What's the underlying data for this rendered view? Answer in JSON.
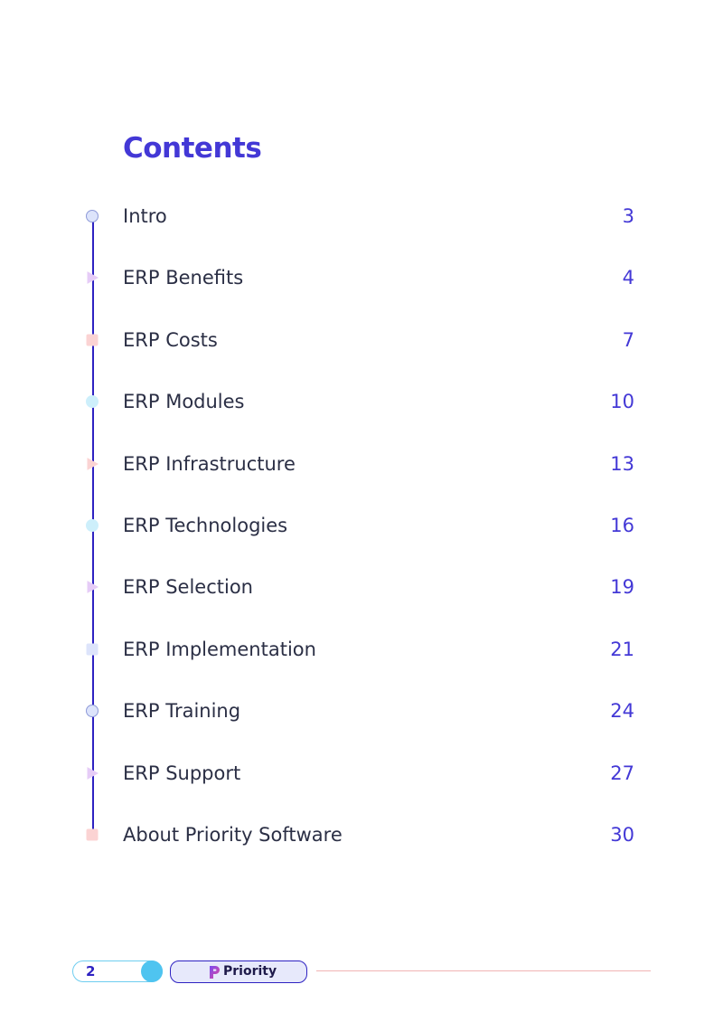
{
  "document": {
    "title": "Contents"
  },
  "toc": [
    {
      "title": "Intro",
      "page": "3",
      "marker": "circle-marker-icon",
      "color": "#dde4fb",
      "stroke": "#8e9ad8"
    },
    {
      "title": "ERP Benefits",
      "page": "4",
      "marker": "triangle-marker-icon",
      "color": "#e6ccf7",
      "stroke": "#e6ccf7"
    },
    {
      "title": "ERP Costs",
      "page": "7",
      "marker": "square-marker-icon",
      "color": "#fbd3d3",
      "stroke": "#fbd3d3"
    },
    {
      "title": "ERP Modules",
      "page": "10",
      "marker": "circle-marker-icon",
      "color": "#cdeffb",
      "stroke": "#cdeffb"
    },
    {
      "title": "ERP Infrastructure",
      "page": "13",
      "marker": "triangle-marker-icon",
      "color": "#fbd3d3",
      "stroke": "#fbd3d3"
    },
    {
      "title": "ERP Technologies",
      "page": "16",
      "marker": "circle-marker-icon",
      "color": "#cdeffb",
      "stroke": "#cdeffb"
    },
    {
      "title": "ERP Selection",
      "page": "19",
      "marker": "triangle-marker-icon",
      "color": "#e6ccf7",
      "stroke": "#e6ccf7"
    },
    {
      "title": "ERP Implementation",
      "page": "21",
      "marker": "square-marker-icon",
      "color": "#dde4fb",
      "stroke": "#dde4fb"
    },
    {
      "title": "ERP Training",
      "page": "24",
      "marker": "circle-marker-icon",
      "color": "#dde4fb",
      "stroke": "#8e9ad8"
    },
    {
      "title": "ERP Support",
      "page": "27",
      "marker": "triangle-marker-icon",
      "color": "#e6ccf7",
      "stroke": "#e6ccf7"
    },
    {
      "title": "About Priority Software",
      "page": "30",
      "marker": "square-marker-icon",
      "color": "#fbd3d3",
      "stroke": "#fbd3d3"
    }
  ],
  "footer": {
    "page_number": "2",
    "logo_text": "Priority",
    "logo_icon": "priority-logo-icon"
  },
  "colors": {
    "accent": "#4338d6",
    "timeline": "#2e22c2",
    "text": "#2b2f45",
    "footer_line": "#f1b4b4",
    "footer_dot": "#4fc4f0"
  }
}
